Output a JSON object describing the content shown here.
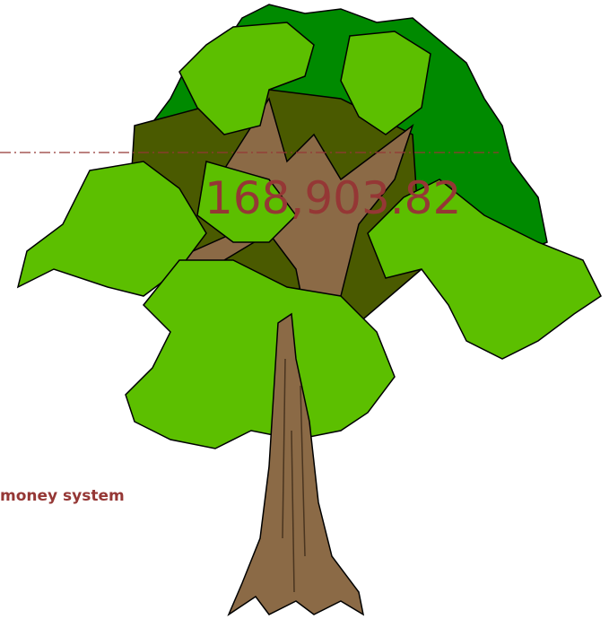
{
  "figure": {
    "amount": "168,903.82",
    "caption": "money system"
  }
}
